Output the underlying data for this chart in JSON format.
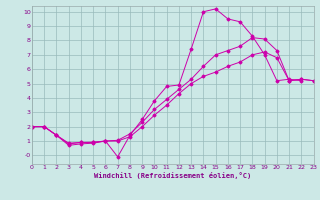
{
  "xlabel": "Windchill (Refroidissement éolien,°C)",
  "bg_color": "#cce8e6",
  "grid_color": "#99bbbb",
  "line_color": "#cc00aa",
  "xlim": [
    0,
    23
  ],
  "ylim": [
    -0.6,
    10.4
  ],
  "xticks": [
    0,
    1,
    2,
    3,
    4,
    5,
    6,
    7,
    8,
    9,
    10,
    11,
    12,
    13,
    14,
    15,
    16,
    17,
    18,
    19,
    20,
    21,
    22,
    23
  ],
  "yticks": [
    0,
    1,
    2,
    3,
    4,
    5,
    6,
    7,
    8,
    9,
    10
  ],
  "ytick_labels": [
    "-0",
    "1",
    "2",
    "3",
    "4",
    "5",
    "6",
    "7",
    "8",
    "9",
    "10"
  ],
  "series1_x": [
    0,
    1,
    2,
    3,
    4,
    5,
    6,
    7,
    8,
    9,
    10,
    11,
    12,
    13,
    14,
    15,
    16,
    17,
    18,
    19,
    20,
    21,
    22
  ],
  "series1_y": [
    2.0,
    2.0,
    1.4,
    0.7,
    0.8,
    0.85,
    1.0,
    -0.1,
    1.4,
    2.5,
    3.8,
    4.8,
    4.9,
    7.4,
    10.0,
    10.2,
    9.5,
    9.3,
    8.3,
    7.0,
    5.2,
    5.3,
    5.2
  ],
  "series2_x": [
    0,
    1,
    2,
    3,
    4,
    5,
    6,
    7,
    8,
    9,
    10,
    11,
    12,
    13,
    14,
    15,
    16,
    17,
    18,
    19,
    20,
    21,
    22,
    23
  ],
  "series2_y": [
    2.0,
    2.0,
    1.4,
    0.8,
    0.9,
    0.9,
    1.0,
    1.0,
    1.3,
    2.0,
    2.8,
    3.5,
    4.3,
    5.0,
    5.5,
    5.8,
    6.2,
    6.5,
    7.0,
    7.2,
    6.8,
    5.2,
    5.3,
    5.2
  ],
  "series3_x": [
    0,
    1,
    2,
    3,
    4,
    5,
    6,
    7,
    8,
    9,
    10,
    11,
    12,
    13,
    14,
    15,
    16,
    17,
    18,
    19,
    20,
    21,
    22,
    23
  ],
  "series3_y": [
    2.0,
    2.0,
    1.4,
    0.85,
    0.9,
    0.92,
    1.0,
    1.05,
    1.5,
    2.3,
    3.2,
    3.9,
    4.6,
    5.3,
    6.2,
    7.0,
    7.3,
    7.6,
    8.2,
    8.1,
    7.3,
    5.2,
    5.3,
    5.2
  ]
}
